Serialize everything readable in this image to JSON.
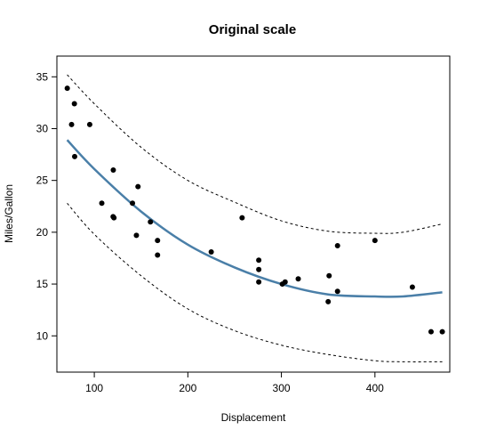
{
  "chart_data": {
    "type": "scatter",
    "title": "Original scale",
    "xlabel": "Displacement",
    "ylabel": "Miles/Gallon",
    "xlim": [
      60,
      480
    ],
    "ylim": [
      6.5,
      37
    ],
    "xticks": [
      100,
      200,
      300,
      400
    ],
    "yticks": [
      10,
      15,
      20,
      25,
      30,
      35
    ],
    "grid": false,
    "legend": "none",
    "points": [
      {
        "x": 71.1,
        "y": 33.9
      },
      {
        "x": 75.7,
        "y": 30.4
      },
      {
        "x": 78.7,
        "y": 32.4
      },
      {
        "x": 79,
        "y": 27.3
      },
      {
        "x": 95.1,
        "y": 30.4
      },
      {
        "x": 108,
        "y": 22.8
      },
      {
        "x": 120.1,
        "y": 21.5
      },
      {
        "x": 120.3,
        "y": 26.0
      },
      {
        "x": 121,
        "y": 21.4
      },
      {
        "x": 140.8,
        "y": 22.8
      },
      {
        "x": 145,
        "y": 19.7
      },
      {
        "x": 146.7,
        "y": 24.4
      },
      {
        "x": 160,
        "y": 21.0
      },
      {
        "x": 167.6,
        "y": 19.2
      },
      {
        "x": 167.6,
        "y": 17.8
      },
      {
        "x": 225,
        "y": 18.1
      },
      {
        "x": 258,
        "y": 21.4
      },
      {
        "x": 275.8,
        "y": 16.4
      },
      {
        "x": 275.8,
        "y": 17.3
      },
      {
        "x": 275.8,
        "y": 15.2
      },
      {
        "x": 301,
        "y": 15.0
      },
      {
        "x": 304,
        "y": 15.2
      },
      {
        "x": 318,
        "y": 15.5
      },
      {
        "x": 350,
        "y": 13.3
      },
      {
        "x": 351,
        "y": 15.8
      },
      {
        "x": 360,
        "y": 14.3
      },
      {
        "x": 360,
        "y": 18.7
      },
      {
        "x": 400,
        "y": 19.2
      },
      {
        "x": 440,
        "y": 14.7
      },
      {
        "x": 460,
        "y": 10.4
      },
      {
        "x": 472,
        "y": 10.4
      }
    ],
    "fit": {
      "x": [
        71,
        100,
        150,
        200,
        250,
        300,
        350,
        400,
        430,
        472
      ],
      "y": [
        28.9,
        26.1,
        22.0,
        18.8,
        16.6,
        15.0,
        14.0,
        13.8,
        13.8,
        14.2
      ],
      "color": "#4a7fa8"
    },
    "upper_band": {
      "x": [
        71,
        100,
        150,
        200,
        250,
        300,
        350,
        400,
        430,
        472
      ],
      "y": [
        35.2,
        32.4,
        28.2,
        25.0,
        22.9,
        21.1,
        20.1,
        19.9,
        20.0,
        20.8
      ]
    },
    "lower_band": {
      "x": [
        71,
        100,
        150,
        200,
        250,
        300,
        350,
        400,
        430,
        472
      ],
      "y": [
        22.8,
        19.8,
        15.8,
        12.6,
        10.5,
        9.1,
        8.2,
        7.6,
        7.5,
        7.5
      ]
    }
  }
}
